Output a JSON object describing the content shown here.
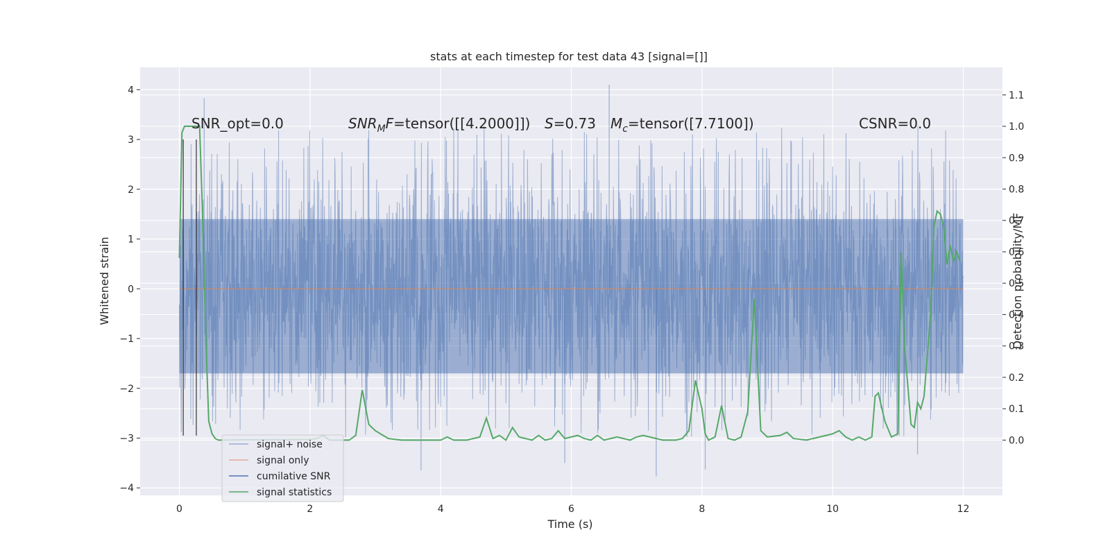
{
  "chart_data": {
    "type": "line",
    "title": "stats at each timestep for test data 43 [signal=[]]",
    "xlabel": "Time (s)",
    "ylabel": "Whitened strain",
    "y2label": "Detection probability/MF",
    "xlim": [
      -0.6,
      12.6
    ],
    "ylim": [
      -4.15,
      4.45
    ],
    "y2lim": [
      -0.176,
      1.188
    ],
    "xticks": [
      0,
      2,
      4,
      6,
      8,
      10,
      12
    ],
    "yticks": [
      -4,
      -3,
      -2,
      -1,
      0,
      1,
      2,
      3,
      4
    ],
    "y2ticks": [
      0.0,
      0.1,
      0.2,
      0.3,
      0.4,
      0.5,
      0.6,
      0.7,
      0.8,
      0.9,
      1.0,
      1.1
    ],
    "xtick_labels": [
      "0",
      "2",
      "4",
      "6",
      "8",
      "10",
      "12"
    ],
    "ytick_labels": [
      "−4",
      "−3",
      "−2",
      "−1",
      "0",
      "1",
      "2",
      "3",
      "4"
    ],
    "y2tick_labels": [
      "0.0",
      "0.1",
      "0.2",
      "0.3",
      "0.4",
      "0.5",
      "0.6",
      "0.7",
      "0.8",
      "0.9",
      "1.0",
      "1.1"
    ],
    "grid": true,
    "legend_position": "bottom-left",
    "annotations": {
      "snr_opt": "SNR_opt=0.0",
      "snr_mf_label": "SNR",
      "snr_mf_sub": "M",
      "snr_mf_rest": "F=tensor([[4.2000]])",
      "s_label": "S",
      "s_rest": "=0.73",
      "mc_label": "M",
      "mc_sub": "c",
      "mc_rest": "=tensor([7.7100])",
      "csnr": "CSNR=0.0"
    },
    "series": [
      {
        "name": "signal+ noise",
        "color": "#4c72b0",
        "opacity": 0.5,
        "duration_s": 12,
        "envelope_upper": 1.4,
        "envelope_lower": -1.7,
        "notable_points": [
          [
            0.38,
            3.83
          ],
          [
            6.58,
            4.1
          ],
          [
            11.3,
            -3.33
          ],
          [
            3.7,
            -3.65
          ],
          [
            7.3,
            -3.77
          ],
          [
            8.05,
            -3.63
          ],
          [
            5.9,
            -3.5
          ]
        ]
      },
      {
        "name": "signal only",
        "color": "#dd8452",
        "x": [
          0,
          12
        ],
        "y": [
          0,
          0
        ]
      },
      {
        "name": "cumilative SNR",
        "color": "#4c72b0",
        "x": [],
        "y": []
      },
      {
        "name": "signal statistics",
        "color": "#55a868",
        "axis": "right",
        "x": [
          0.0,
          0.04,
          0.08,
          0.17,
          0.25,
          0.31,
          0.35,
          0.41,
          0.45,
          0.5,
          0.55,
          0.6,
          0.65,
          0.7,
          1.0,
          1.5,
          2.0,
          2.1,
          2.2,
          2.3,
          2.4,
          2.5,
          2.6,
          2.7,
          2.8,
          2.9,
          3.0,
          3.2,
          3.4,
          4.0,
          4.1,
          4.2,
          4.4,
          4.6,
          4.7,
          4.8,
          4.9,
          5.0,
          5.1,
          5.2,
          5.3,
          5.4,
          5.5,
          5.6,
          5.7,
          5.8,
          5.9,
          6.0,
          6.1,
          6.2,
          6.3,
          6.4,
          6.5,
          6.6,
          6.7,
          6.8,
          6.9,
          7.0,
          7.1,
          7.2,
          7.3,
          7.4,
          7.5,
          7.6,
          7.7,
          7.8,
          7.9,
          8.0,
          8.05,
          8.1,
          8.2,
          8.3,
          8.4,
          8.5,
          8.6,
          8.7,
          8.8,
          8.9,
          9.0,
          9.2,
          9.3,
          9.4,
          9.6,
          9.8,
          9.9,
          10.0,
          10.1,
          10.2,
          10.3,
          10.4,
          10.5,
          10.6,
          10.65,
          10.7,
          10.8,
          10.9,
          11.0,
          11.05,
          11.1,
          11.2,
          11.25,
          11.3,
          11.35,
          11.4,
          11.5,
          11.55,
          11.6,
          11.65,
          11.7,
          11.75,
          11.8,
          11.85,
          11.9,
          11.95
        ],
        "y": [
          0.58,
          0.98,
          1.0,
          1.0,
          1.0,
          1.0,
          0.75,
          0.3,
          0.06,
          0.02,
          0.005,
          0.0,
          0.0,
          0.0,
          0.001,
          0.001,
          0.002,
          0.005,
          0.015,
          0.0,
          0.0,
          0.0,
          0.0,
          0.015,
          0.16,
          0.05,
          0.03,
          0.005,
          0.0,
          0.0,
          0.01,
          0.0,
          0.0,
          0.01,
          0.07,
          0.005,
          0.015,
          0.0,
          0.04,
          0.01,
          0.005,
          0.0,
          0.015,
          0.0,
          0.005,
          0.03,
          0.005,
          0.01,
          0.015,
          0.005,
          0.0,
          0.015,
          0.0,
          0.005,
          0.01,
          0.005,
          0.0,
          0.01,
          0.015,
          0.01,
          0.005,
          0.0,
          0.0,
          0.0,
          0.005,
          0.03,
          0.19,
          0.1,
          0.02,
          0.0,
          0.01,
          0.11,
          0.005,
          0.0,
          0.01,
          0.09,
          0.45,
          0.03,
          0.01,
          0.015,
          0.025,
          0.005,
          0.0,
          0.01,
          0.015,
          0.02,
          0.03,
          0.01,
          0.0,
          0.01,
          0.0,
          0.01,
          0.14,
          0.15,
          0.06,
          0.01,
          0.02,
          0.6,
          0.3,
          0.05,
          0.04,
          0.12,
          0.1,
          0.14,
          0.4,
          0.68,
          0.73,
          0.72,
          0.68,
          0.56,
          0.62,
          0.57,
          0.6,
          0.57
        ]
      }
    ],
    "vertical_markers": [
      0.06,
      0.26
    ]
  }
}
